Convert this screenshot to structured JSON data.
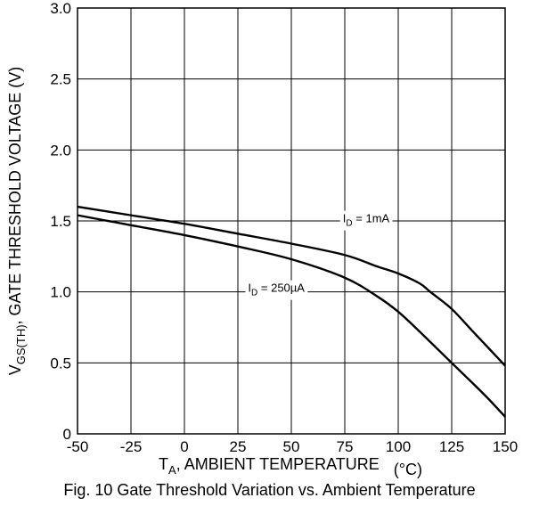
{
  "chart_data": {
    "type": "line",
    "title": "",
    "xlabel": {
      "main": "T",
      "sub": "A",
      "rest": ", AMBIENT TEMPERATURE",
      "unit": "(°C)"
    },
    "ylabel": {
      "main": "V",
      "sub": "GS(TH)",
      "rest": ", GATE THRESHOLD VOLTAGE (V)"
    },
    "xlim": [
      -50,
      150
    ],
    "ylim": [
      0,
      3.0
    ],
    "xticks": [
      -50,
      -25,
      0,
      25,
      50,
      75,
      100,
      125,
      150
    ],
    "xtick_labels": [
      "-50",
      "-25",
      "0",
      "25",
      "50",
      "75",
      "100",
      "125",
      "150"
    ],
    "yticks": [
      0,
      0.5,
      1.0,
      1.5,
      2.0,
      2.5,
      3.0
    ],
    "ytick_labels": [
      "0",
      "0.5",
      "1.0",
      "1.5",
      "2.0",
      "2.5",
      "3.0"
    ],
    "grid": true,
    "series": [
      {
        "name": "ID = 1mA",
        "label_parts": {
          "main": "I",
          "sub": "D",
          "rest": " = 1mA"
        },
        "x": [
          -50,
          -25,
          0,
          25,
          50,
          75,
          90,
          100,
          110,
          115,
          125,
          135,
          150
        ],
        "y": [
          1.6,
          1.54,
          1.48,
          1.41,
          1.34,
          1.26,
          1.18,
          1.13,
          1.06,
          1.0,
          0.88,
          0.72,
          0.48
        ]
      },
      {
        "name": "ID = 250µA",
        "label_parts": {
          "main": "I",
          "sub": "D",
          "rest": " = 250µA"
        },
        "x": [
          -50,
          -25,
          0,
          25,
          50,
          75,
          90,
          100,
          110,
          125,
          140,
          150
        ],
        "y": [
          1.54,
          1.47,
          1.4,
          1.32,
          1.23,
          1.1,
          0.97,
          0.86,
          0.72,
          0.5,
          0.28,
          0.12
        ]
      }
    ],
    "annotations": [
      {
        "series": 0,
        "x": 85,
        "y": 1.49
      },
      {
        "series": 1,
        "x": 43,
        "y": 1.0
      }
    ]
  },
  "caption": "Fig. 10 Gate Threshold Variation vs. Ambient Temperature"
}
